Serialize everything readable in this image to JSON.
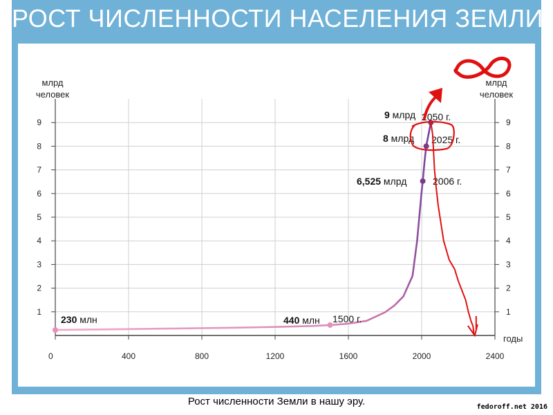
{
  "header": {
    "title": "РОСТ ЧИСЛЕННОСТИ НАСЕЛЕНИЯ ЗЕМЛИ"
  },
  "caption": "Рост численности Земли в нашу эру.",
  "watermark": "fedoroff.net 2016",
  "colors": {
    "frame": "#6fb1d7",
    "curve_start": "#f2a9c8",
    "curve_mid": "#c26aa8",
    "curve_end": "#6a3d9a",
    "marker_light": "#e88fba",
    "marker_dark": "#7a3a86",
    "red_marker": "#e01010",
    "grid": "#cfcfcf"
  },
  "chart_data": {
    "type": "line",
    "title": "РОСТ ЧИСЛЕННОСТИ НАСЕЛЕНИЯ ЗЕМЛИ",
    "xlabel": "годы",
    "ylabel_left": "млрд человек",
    "ylabel_right": "млрд человек",
    "xlim": [
      0,
      2400
    ],
    "ylim": [
      0,
      10
    ],
    "x_ticks": [
      "0",
      "400",
      "800",
      "1200",
      "1600",
      "2000",
      "2400"
    ],
    "y_ticks": [
      "1",
      "2",
      "3",
      "4",
      "5",
      "6",
      "7",
      "8",
      "9"
    ],
    "grid": true,
    "series": [
      {
        "x": [
          0,
          200,
          400,
          600,
          800,
          1000,
          1200,
          1400,
          1500,
          1600,
          1700,
          1800,
          1850,
          1900,
          1950,
          1975,
          2000,
          2006,
          2015,
          2025,
          2040,
          2050
        ],
        "y": [
          0.23,
          0.25,
          0.27,
          0.29,
          0.31,
          0.33,
          0.36,
          0.4,
          0.44,
          0.5,
          0.62,
          0.98,
          1.26,
          1.65,
          2.52,
          4.0,
          6.1,
          6.525,
          7.3,
          8.0,
          8.6,
          9.0
        ]
      }
    ],
    "markers": [
      {
        "x": 0,
        "y": 0.23
      },
      {
        "x": 1500,
        "y": 0.44
      },
      {
        "x": 2006,
        "y": 6.525
      },
      {
        "x": 2025,
        "y": 8.0
      },
      {
        "x": 2050,
        "y": 9.0
      }
    ],
    "annotations": [
      {
        "bold": "230",
        "text": " млн"
      },
      {
        "bold": "440",
        "text": " млн"
      },
      {
        "text": "1500 г."
      },
      {
        "bold": "6,525",
        "text": " млрд"
      },
      {
        "text": "2006 г."
      },
      {
        "bold": "8",
        "text": " млрд"
      },
      {
        "text": "2025 г."
      },
      {
        "bold": "9",
        "text": " млрд"
      },
      {
        "text": "2050 г."
      }
    ],
    "hand_drawn_projection": {
      "x": [
        2050,
        2060,
        2070,
        2080,
        2090,
        2100,
        2120,
        2150,
        2180,
        2200,
        2220,
        2240,
        2255,
        2270,
        2280,
        2285,
        2290
      ],
      "y": [
        9.0,
        8.5,
        7.0,
        6.2,
        5.5,
        5.0,
        4.0,
        3.2,
        2.8,
        2.3,
        1.9,
        1.5,
        1.0,
        0.6,
        0.4,
        0.1,
        0.0
      ]
    }
  }
}
